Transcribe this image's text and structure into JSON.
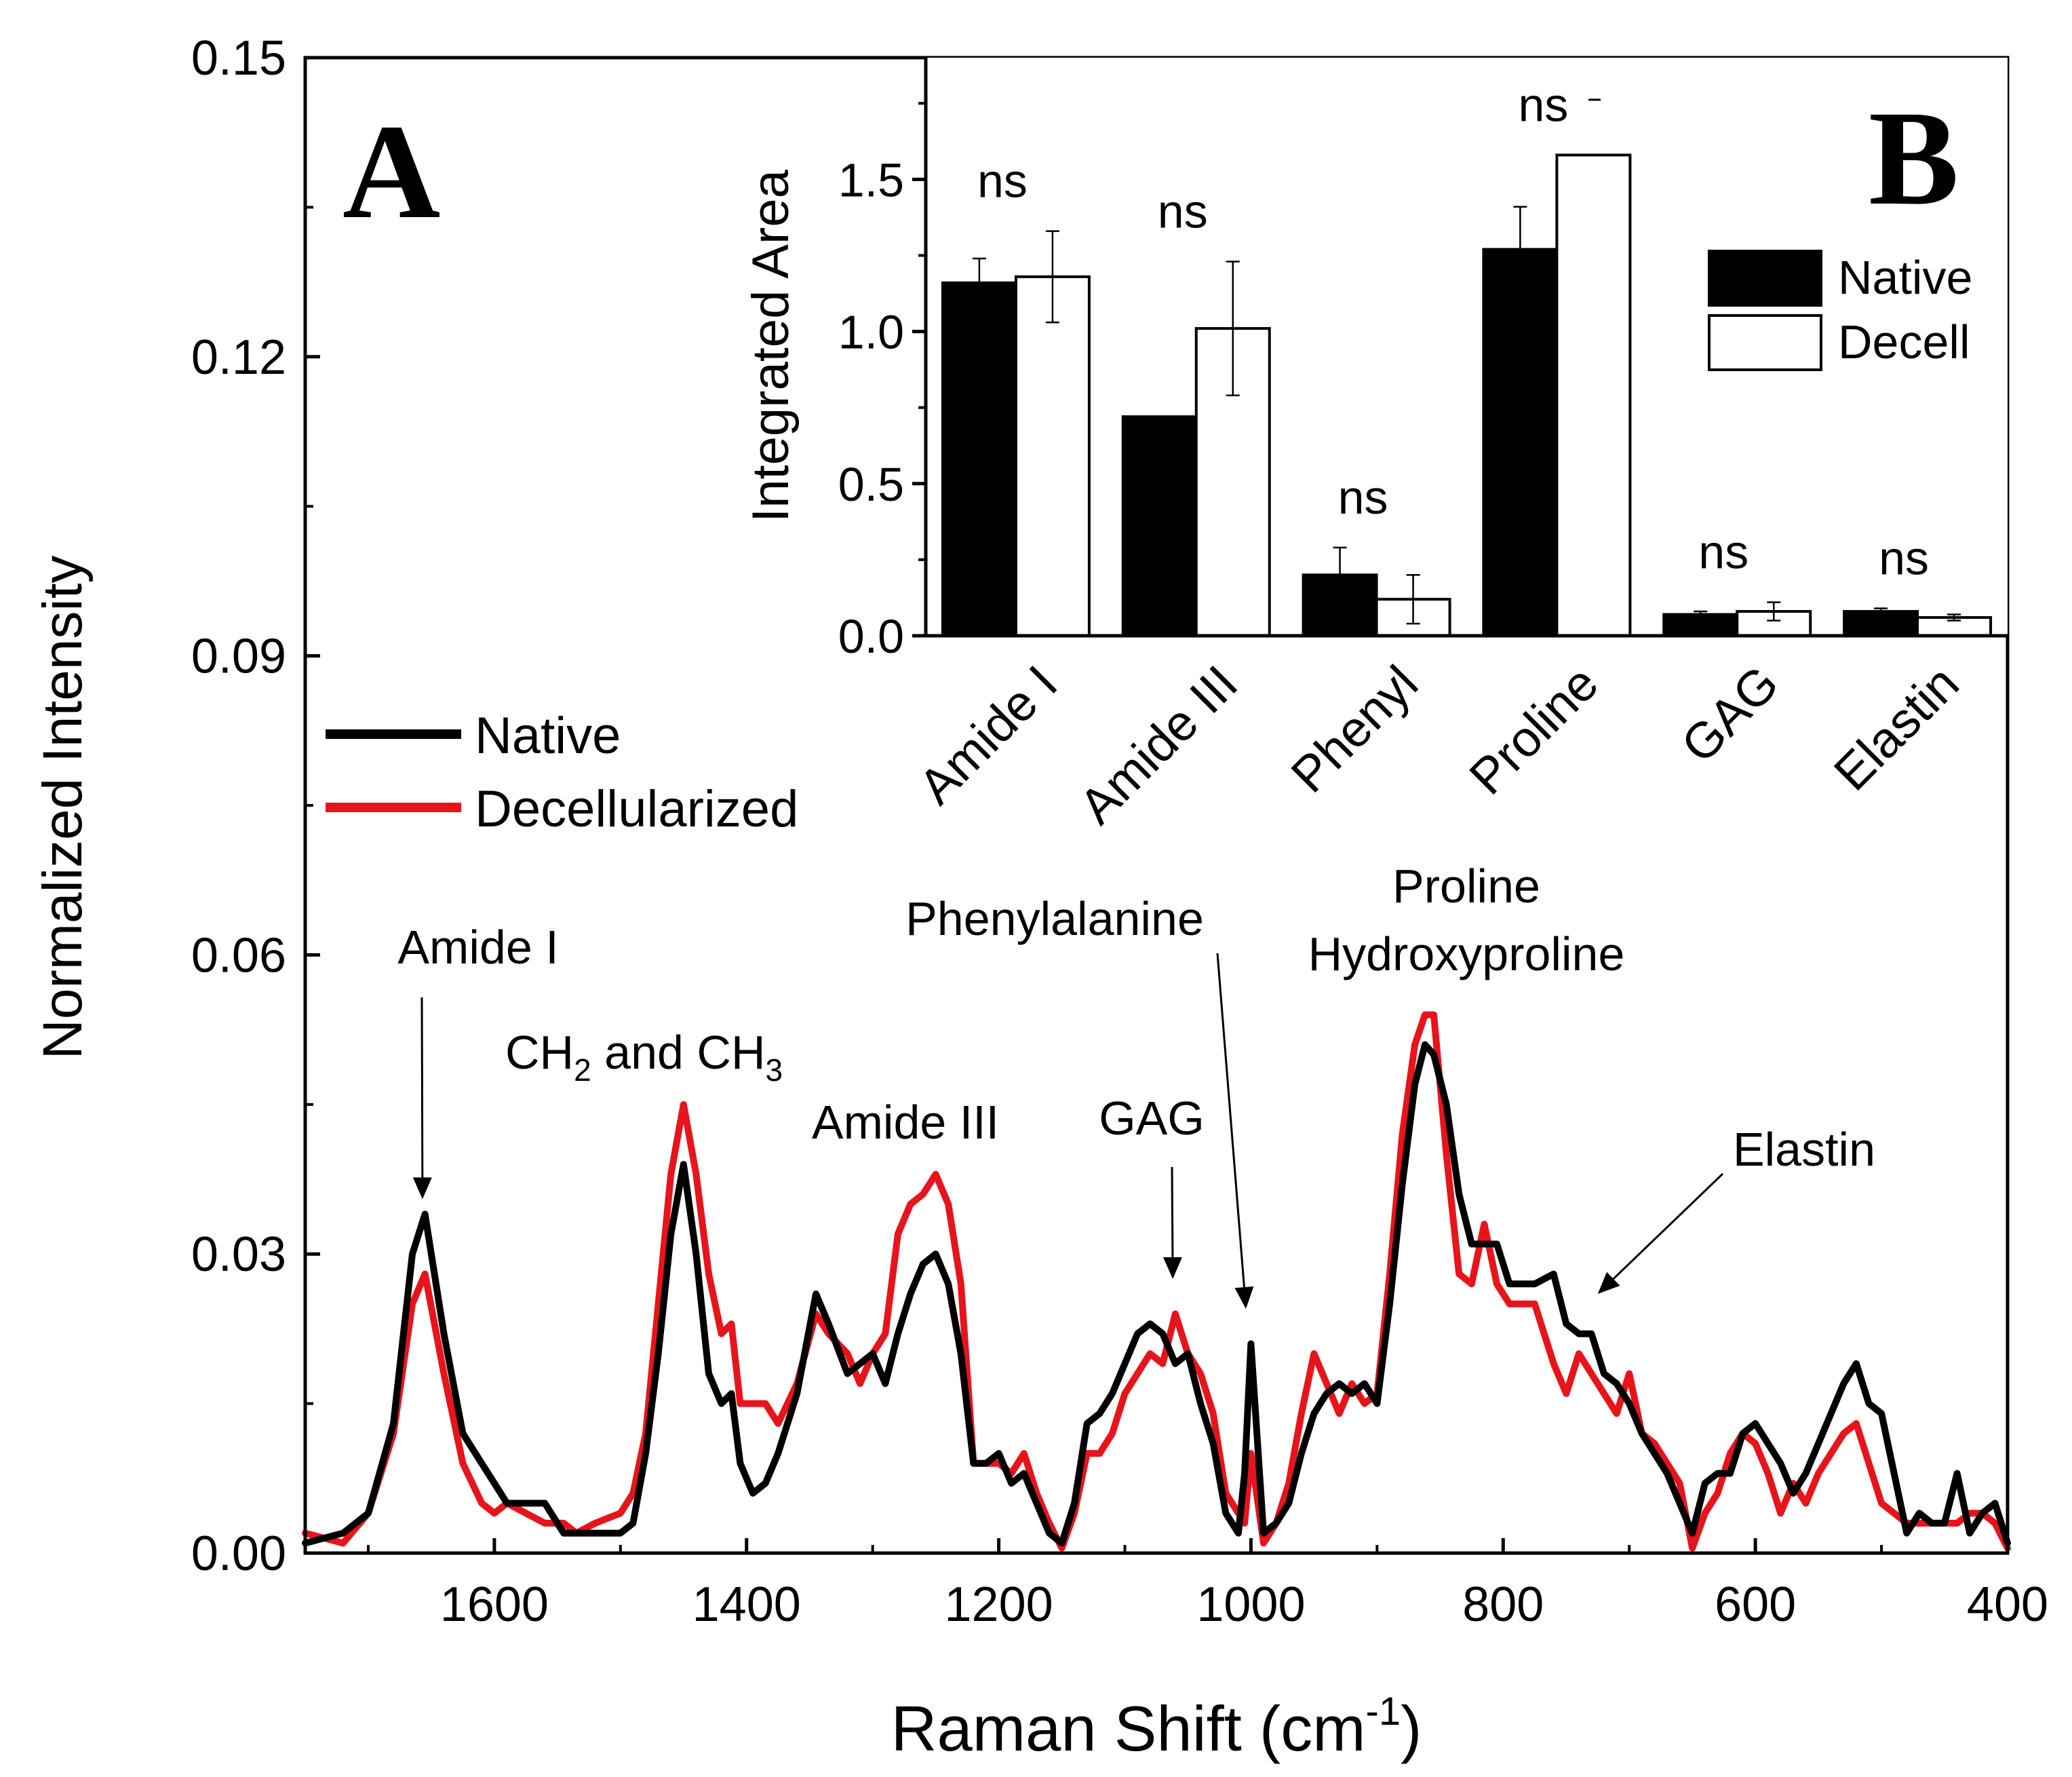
{
  "chart_data": [
    {
      "type": "line",
      "panel_label": "A",
      "xlabel_main": "Raman Shift (cm",
      "xlabel_sup": "-1",
      "xlabel_close": ")",
      "ylabel": "Normalized Intensity",
      "xlim": [
        1750,
        400
      ],
      "ylim": [
        0,
        0.15
      ],
      "x_ticks": [
        1600,
        1400,
        1200,
        1000,
        800,
        600,
        400
      ],
      "x_tick_labels": [
        "1600",
        "1400",
        "1200",
        "1000",
        "800",
        "600",
        "400"
      ],
      "y_ticks": [
        0,
        0.03,
        0.06,
        0.09,
        0.12,
        0.15
      ],
      "y_tick_labels": [
        "0.00",
        "0.03",
        "0.06",
        "0.09",
        "0.12",
        "0.15"
      ],
      "legend": [
        {
          "label": "Native",
          "color": "#000000"
        },
        {
          "label": "Decellularized",
          "color": "#e8141b"
        }
      ],
      "series": [
        {
          "name": "Native",
          "color": "#000000",
          "x": [
            1750,
            1720,
            1700,
            1680,
            1665,
            1655,
            1640,
            1625,
            1610,
            1600,
            1590,
            1575,
            1560,
            1545,
            1535,
            1520,
            1500,
            1490,
            1480,
            1470,
            1460,
            1450,
            1440,
            1430,
            1420,
            1412,
            1405,
            1395,
            1385,
            1375,
            1360,
            1345,
            1335,
            1320,
            1310,
            1300,
            1290,
            1280,
            1270,
            1260,
            1250,
            1240,
            1230,
            1220,
            1210,
            1200,
            1190,
            1180,
            1170,
            1160,
            1150,
            1140,
            1130,
            1120,
            1110,
            1100,
            1090,
            1080,
            1070,
            1060,
            1050,
            1040,
            1030,
            1020,
            1010,
            1005,
            1000,
            990,
            980,
            970,
            960,
            950,
            940,
            930,
            920,
            910,
            900,
            890,
            880,
            870,
            862,
            855,
            845,
            835,
            825,
            815,
            805,
            795,
            785,
            775,
            760,
            750,
            740,
            730,
            720,
            710,
            700,
            690,
            680,
            670,
            660,
            650,
            640,
            630,
            620,
            610,
            600,
            590,
            580,
            570,
            560,
            550,
            540,
            530,
            520,
            510,
            500,
            490,
            480,
            470,
            460,
            450,
            440,
            430,
            420,
            410,
            400
          ],
          "y": [
            0.001,
            0.002,
            0.004,
            0.013,
            0.03,
            0.034,
            0.022,
            0.012,
            0.009,
            0.007,
            0.005,
            0.005,
            0.005,
            0.002,
            0.002,
            0.002,
            0.002,
            0.003,
            0.01,
            0.02,
            0.032,
            0.039,
            0.03,
            0.018,
            0.015,
            0.016,
            0.009,
            0.006,
            0.007,
            0.01,
            0.016,
            0.026,
            0.023,
            0.018,
            0.019,
            0.02,
            0.017,
            0.022,
            0.026,
            0.029,
            0.03,
            0.027,
            0.02,
            0.009,
            0.009,
            0.01,
            0.007,
            0.008,
            0.005,
            0.002,
            0.001,
            0.005,
            0.013,
            0.014,
            0.016,
            0.019,
            0.022,
            0.023,
            0.022,
            0.019,
            0.02,
            0.015,
            0.011,
            0.004,
            0.002,
            0.008,
            0.021,
            0.002,
            0.003,
            0.005,
            0.01,
            0.014,
            0.016,
            0.017,
            0.016,
            0.017,
            0.015,
            0.025,
            0.037,
            0.047,
            0.051,
            0.05,
            0.045,
            0.036,
            0.031,
            0.031,
            0.031,
            0.027,
            0.027,
            0.027,
            0.028,
            0.023,
            0.022,
            0.022,
            0.018,
            0.017,
            0.015,
            0.012,
            0.01,
            0.008,
            0.005,
            0.002,
            0.007,
            0.008,
            0.008,
            0.012,
            0.013,
            0.011,
            0.009,
            0.006,
            0.008,
            0.011,
            0.014,
            0.017,
            0.019,
            0.015,
            0.014,
            0.008,
            0.002,
            0.004,
            0.003,
            0.003,
            0.008,
            0.002,
            0.004,
            0.005,
            0.001
          ]
        },
        {
          "name": "Decellularized",
          "color": "#e8141b",
          "x": [
            1750,
            1720,
            1700,
            1680,
            1665,
            1655,
            1640,
            1625,
            1610,
            1600,
            1590,
            1575,
            1560,
            1545,
            1535,
            1520,
            1500,
            1490,
            1480,
            1470,
            1460,
            1450,
            1440,
            1430,
            1420,
            1412,
            1405,
            1395,
            1385,
            1375,
            1360,
            1345,
            1335,
            1320,
            1310,
            1300,
            1290,
            1280,
            1270,
            1260,
            1250,
            1240,
            1230,
            1220,
            1210,
            1200,
            1190,
            1180,
            1170,
            1160,
            1150,
            1140,
            1130,
            1120,
            1110,
            1100,
            1090,
            1080,
            1070,
            1060,
            1050,
            1040,
            1030,
            1020,
            1010,
            1005,
            1000,
            990,
            980,
            970,
            960,
            950,
            940,
            930,
            920,
            910,
            900,
            890,
            880,
            870,
            862,
            855,
            845,
            835,
            825,
            815,
            805,
            795,
            785,
            775,
            760,
            750,
            740,
            730,
            720,
            710,
            700,
            690,
            680,
            670,
            660,
            650,
            640,
            630,
            620,
            610,
            600,
            590,
            580,
            570,
            560,
            550,
            540,
            530,
            520,
            510,
            500,
            490,
            480,
            470,
            460,
            450,
            440,
            430,
            420,
            410,
            400
          ],
          "y": [
            0.002,
            0.001,
            0.004,
            0.012,
            0.025,
            0.028,
            0.018,
            0.009,
            0.005,
            0.004,
            0.005,
            0.004,
            0.003,
            0.003,
            0.002,
            0.003,
            0.004,
            0.006,
            0.012,
            0.025,
            0.038,
            0.045,
            0.038,
            0.028,
            0.022,
            0.023,
            0.015,
            0.015,
            0.015,
            0.013,
            0.017,
            0.024,
            0.022,
            0.02,
            0.017,
            0.02,
            0.022,
            0.032,
            0.035,
            0.036,
            0.038,
            0.035,
            0.027,
            0.009,
            0.009,
            0.009,
            0.008,
            0.01,
            0.006,
            0.003,
            0.0005,
            0.004,
            0.01,
            0.01,
            0.012,
            0.016,
            0.018,
            0.02,
            0.019,
            0.024,
            0.02,
            0.018,
            0.014,
            0.006,
            0.004,
            0.003,
            0.01,
            0.001,
            0.003,
            0.007,
            0.014,
            0.02,
            0.017,
            0.014,
            0.017,
            0.015,
            0.016,
            0.028,
            0.042,
            0.051,
            0.054,
            0.054,
            0.04,
            0.028,
            0.027,
            0.033,
            0.027,
            0.025,
            0.025,
            0.025,
            0.019,
            0.016,
            0.02,
            0.018,
            0.016,
            0.014,
            0.018,
            0.012,
            0.011,
            0.009,
            0.007,
            0.0005,
            0.004,
            0.006,
            0.01,
            0.012,
            0.011,
            0.008,
            0.004,
            0.007,
            0.005,
            0.008,
            0.01,
            0.012,
            0.013,
            0.009,
            0.005,
            0.004,
            0.003,
            0.003,
            0.003,
            0.003,
            0.003,
            0.004,
            0.004,
            0.003,
            0.0005
          ]
        }
      ],
      "annotations": [
        {
          "text": "Amide I",
          "arrow_to": [
            1657,
            0.0355
          ]
        },
        {
          "text_main": "CH",
          "sub1": "2",
          "text_mid": " and CH",
          "sub2": "3"
        },
        {
          "text": "Amide III"
        },
        {
          "text": "GAG",
          "arrow_to": [
            1062,
            0.0275
          ]
        },
        {
          "text": "Phenylalanine",
          "arrow_to": [
            1004,
            0.0245
          ]
        },
        {
          "text": "Proline"
        },
        {
          "text": "Hydroxyproline"
        },
        {
          "text": "Elastin",
          "arrow_to": [
            725,
            0.026
          ]
        }
      ]
    },
    {
      "type": "bar",
      "panel_label": "B",
      "ylabel": "Integrated Area",
      "categories": [
        "Amide I",
        "Amide III",
        "Phenyl",
        "Proline",
        "GAG",
        "Elastin"
      ],
      "ylim": [
        0,
        1.9
      ],
      "y_ticks": [
        0,
        0.5,
        1.0,
        1.5
      ],
      "y_tick_labels": [
        "0.0",
        "0.5",
        "1.0",
        "1.5"
      ],
      "series": [
        {
          "name": "Native",
          "fill": "#000000",
          "values": [
            1.16,
            0.72,
            0.2,
            1.27,
            0.07,
            0.08
          ],
          "errors": [
            0.08,
            0.0,
            0.09,
            0.14,
            0.01,
            0.01
          ]
        },
        {
          "name": "Decell",
          "fill": "#ffffff",
          "values": [
            1.18,
            1.01,
            0.12,
            1.58,
            0.08,
            0.06
          ],
          "errors": [
            0.15,
            0.22,
            0.08,
            0.0,
            0.03,
            0.01
          ]
        }
      ],
      "significance": [
        "ns",
        "ns",
        "ns",
        "ns",
        "ns",
        "ns"
      ],
      "legend": [
        {
          "label": "Native",
          "fill": "#000000"
        },
        {
          "label": "Decell",
          "fill": "#ffffff"
        }
      ],
      "legend_position": "top-right"
    }
  ]
}
